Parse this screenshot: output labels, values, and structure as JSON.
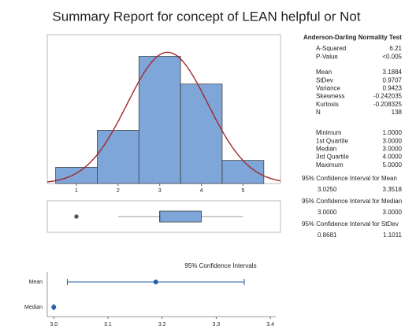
{
  "title": "Summary Report for concept of LEAN helpful or Not",
  "chart_data": [
    {
      "type": "histogram",
      "bins": [
        0.5,
        1.5,
        2.5,
        3.5,
        4.5,
        5.5
      ],
      "counts": [
        7,
        23,
        55,
        43,
        10
      ],
      "color": "#7ea6d8",
      "curve_color": "#a3282c",
      "xlim": [
        0.3,
        5.9
      ],
      "xticks": [
        1,
        2,
        3,
        4,
        5
      ]
    },
    {
      "type": "box",
      "whisker_low": 2,
      "q1": 3,
      "median": 3,
      "q3": 4,
      "whisker_high": 5,
      "outliers": [
        1
      ],
      "color": "#7ea6d8",
      "xlim": [
        0.3,
        5.9
      ]
    },
    {
      "type": "interval",
      "title": "95% Confidence Intervals",
      "categories": [
        "Mean",
        "Median"
      ],
      "values": [
        3.1884,
        3
      ],
      "lower": [
        3.025,
        3
      ],
      "upper": [
        3.3518,
        3
      ],
      "color": "#1f5fa8",
      "xlim": [
        2.988,
        3.41
      ],
      "xticks": [
        {
          "value": 3,
          "label": "3.0"
        },
        3.1,
        3.2,
        3.3,
        {
          "value": 3.4,
          "label": "3.4"
        }
      ]
    }
  ],
  "stats": {
    "test_title": "Anderson-Darling Normality Test",
    "groups": [
      [
        {
          "label": "A-Squared",
          "value": "6.21"
        },
        {
          "label": "P-Value",
          "value": "<0.005"
        }
      ],
      [
        {
          "label": "Mean",
          "value": "3.1884"
        },
        {
          "label": "StDev",
          "value": "0.9707"
        },
        {
          "label": "Variance",
          "value": "0.9423"
        },
        {
          "label": "Skewness",
          "value": "-0.242035"
        },
        {
          "label": "Kurtosis",
          "value": "-0.208325"
        },
        {
          "label": "N",
          "value": "138"
        }
      ],
      [
        {
          "label": "Minimum",
          "value": "1.0000"
        },
        {
          "label": "1st Quartile",
          "value": "3.0000"
        },
        {
          "label": "Median",
          "value": "3.0000"
        },
        {
          "label": "3rd Quartile",
          "value": "4.0000"
        },
        {
          "label": "Maximum",
          "value": "5.0000"
        }
      ]
    ],
    "intervals": [
      {
        "title": "95% Confidence Interval for Mean",
        "lower": "3.0250",
        "upper": "3.3518"
      },
      {
        "title": "95% Confidence Interval for Median",
        "lower": "3.0000",
        "upper": "3.0000"
      },
      {
        "title": "95% Confidence Interval for StDev",
        "lower": "0.8681",
        "upper": "1.1011"
      }
    ]
  }
}
